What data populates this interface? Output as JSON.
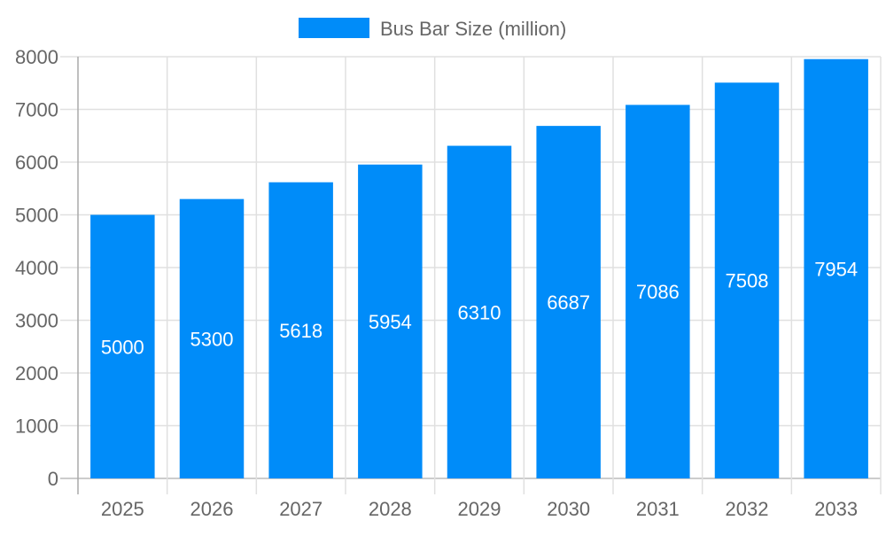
{
  "chart_data": {
    "type": "bar",
    "categories": [
      "2025",
      "2026",
      "2027",
      "2028",
      "2029",
      "2030",
      "2031",
      "2032",
      "2033"
    ],
    "series": [
      {
        "name": "Bus Bar Size (million)",
        "values": [
          5000,
          5300,
          5618,
          5954,
          6310,
          6687,
          7086,
          7508,
          7954
        ],
        "color": "#008cf9"
      }
    ],
    "yticks": [
      0,
      1000,
      2000,
      3000,
      4000,
      5000,
      6000,
      7000,
      8000
    ],
    "ylim": [
      0,
      8000
    ],
    "grid": true,
    "legend": "top-center",
    "data_labels": true
  }
}
